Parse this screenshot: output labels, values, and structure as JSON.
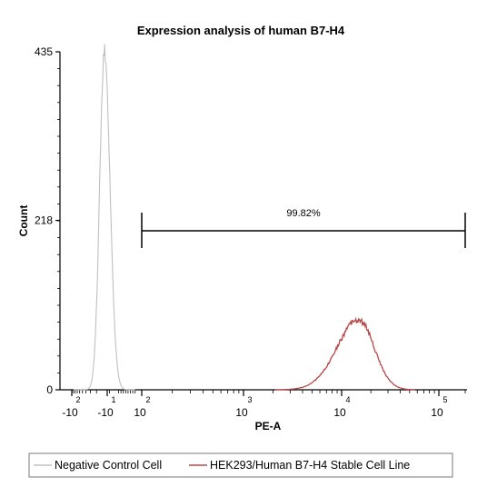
{
  "chart_data": {
    "type": "histogram",
    "title": "Expression analysis of human B7-H4",
    "xlabel": "PE-A",
    "ylabel": "Count",
    "x_scale": "biexponential",
    "ylim": [
      0,
      435
    ],
    "y_ticks": [
      {
        "label": "0",
        "value": 0
      },
      {
        "label": "218",
        "value": 218
      },
      {
        "label": "435",
        "value": 435
      }
    ],
    "x_ticks": [
      {
        "base": "-10",
        "exp": "2",
        "value": -100
      },
      {
        "base": "-10",
        "exp": "1",
        "value": -10
      },
      {
        "base": "10",
        "exp": "2",
        "value": 100
      },
      {
        "base": "10",
        "exp": "3",
        "value": 1000
      },
      {
        "base": "10",
        "exp": "4",
        "value": 10000
      },
      {
        "base": "10",
        "exp": "5",
        "value": 100000
      }
    ],
    "gate": {
      "label": "99.82%",
      "x_start": 100,
      "x_end": 200000
    },
    "series": [
      {
        "name": "Negative Control Cell",
        "color": "#c0c0c0",
        "peak_x": -12,
        "peak_count": 435
      },
      {
        "name": "HEK293/Human B7-H4 Stable Cell Line",
        "color": "#b84848",
        "peak_x": 15000,
        "peak_count": 90
      }
    ],
    "legend_position": "bottom"
  }
}
